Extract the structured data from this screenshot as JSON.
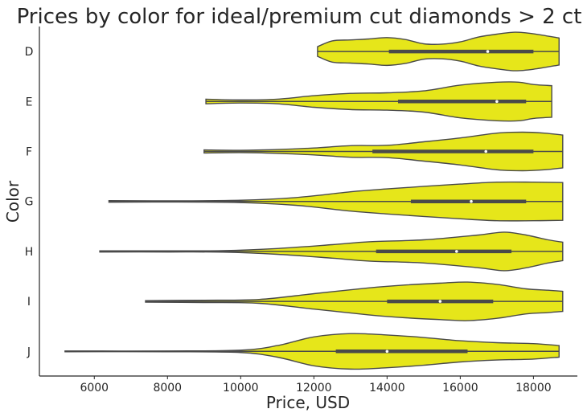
{
  "chart_data": {
    "type": "violin",
    "title": "Prices by color for ideal/premium cut diamonds > 2 ct",
    "xlabel": "Price, USD",
    "ylabel": "Color",
    "xlim": [
      4500,
      19200
    ],
    "xticks": [
      6000,
      8000,
      10000,
      12000,
      14000,
      16000,
      18000
    ],
    "categories": [
      "D",
      "E",
      "F",
      "G",
      "H",
      "I",
      "J"
    ],
    "fill_color": "#e6e61a",
    "grid": false,
    "series": [
      {
        "category": "D",
        "min": 12100,
        "q1": 14050,
        "median": 16750,
        "q3": 18000,
        "max": 18700,
        "density": [
          [
            12100,
            0.25
          ],
          [
            12500,
            0.55
          ],
          [
            13000,
            0.6
          ],
          [
            13500,
            0.65
          ],
          [
            14000,
            0.72
          ],
          [
            14500,
            0.62
          ],
          [
            15000,
            0.4
          ],
          [
            15500,
            0.38
          ],
          [
            16000,
            0.5
          ],
          [
            16500,
            0.75
          ],
          [
            17000,
            0.9
          ],
          [
            17500,
            1.0
          ],
          [
            18000,
            0.92
          ],
          [
            18700,
            0.7
          ]
        ]
      },
      {
        "category": "E",
        "min": 9050,
        "q1": 14300,
        "median": 17000,
        "q3": 17800,
        "max": 18500,
        "density": [
          [
            9050,
            0.12
          ],
          [
            10000,
            0.08
          ],
          [
            11000,
            0.12
          ],
          [
            12000,
            0.3
          ],
          [
            13000,
            0.42
          ],
          [
            14000,
            0.45
          ],
          [
            15000,
            0.55
          ],
          [
            16000,
            0.85
          ],
          [
            17000,
            1.0
          ],
          [
            17600,
            1.0
          ],
          [
            18000,
            0.88
          ],
          [
            18500,
            0.82
          ]
        ]
      },
      {
        "category": "F",
        "min": 9000,
        "q1": 13600,
        "median": 16700,
        "q3": 18000,
        "max": 18800,
        "density": [
          [
            9000,
            0.08
          ],
          [
            10000,
            0.06
          ],
          [
            11000,
            0.1
          ],
          [
            12000,
            0.18
          ],
          [
            13000,
            0.3
          ],
          [
            14000,
            0.32
          ],
          [
            15000,
            0.5
          ],
          [
            16000,
            0.7
          ],
          [
            17000,
            0.95
          ],
          [
            17700,
            1.0
          ],
          [
            18300,
            0.95
          ],
          [
            18800,
            0.85
          ]
        ]
      },
      {
        "category": "G",
        "min": 6400,
        "q1": 14650,
        "median": 16300,
        "q3": 17800,
        "max": 18800,
        "density": [
          [
            6400,
            0.04
          ],
          [
            8000,
            0.03
          ],
          [
            10000,
            0.06
          ],
          [
            11500,
            0.2
          ],
          [
            13000,
            0.5
          ],
          [
            14000,
            0.65
          ],
          [
            15000,
            0.78
          ],
          [
            16000,
            0.9
          ],
          [
            17000,
            1.0
          ],
          [
            18000,
            1.0
          ],
          [
            18800,
            0.98
          ]
        ]
      },
      {
        "category": "H",
        "min": 6150,
        "q1": 13700,
        "median": 15900,
        "q3": 17400,
        "max": 18800,
        "density": [
          [
            6150,
            0.03
          ],
          [
            8000,
            0.03
          ],
          [
            9500,
            0.04
          ],
          [
            11000,
            0.15
          ],
          [
            12500,
            0.35
          ],
          [
            13500,
            0.5
          ],
          [
            15000,
            0.6
          ],
          [
            16500,
            0.85
          ],
          [
            17200,
            1.0
          ],
          [
            17800,
            0.85
          ],
          [
            18400,
            0.6
          ],
          [
            18800,
            0.48
          ]
        ]
      },
      {
        "category": "I",
        "min": 7400,
        "q1": 14000,
        "median": 15450,
        "q3": 16900,
        "max": 18800,
        "density": [
          [
            7400,
            0.04
          ],
          [
            9000,
            0.06
          ],
          [
            10500,
            0.1
          ],
          [
            12000,
            0.4
          ],
          [
            13500,
            0.7
          ],
          [
            14500,
            0.85
          ],
          [
            15500,
            0.95
          ],
          [
            16200,
            1.0
          ],
          [
            17000,
            0.88
          ],
          [
            17800,
            0.65
          ],
          [
            18400,
            0.58
          ],
          [
            18800,
            0.52
          ]
        ]
      },
      {
        "category": "J",
        "min": 5200,
        "q1": 12600,
        "median": 14000,
        "q3": 16200,
        "max": 18700,
        "density": [
          [
            5200,
            0.02
          ],
          [
            8000,
            0.02
          ],
          [
            10000,
            0.06
          ],
          [
            11000,
            0.3
          ],
          [
            12000,
            0.75
          ],
          [
            13000,
            0.92
          ],
          [
            14000,
            0.85
          ],
          [
            15000,
            0.72
          ],
          [
            16000,
            0.55
          ],
          [
            17000,
            0.45
          ],
          [
            18000,
            0.4
          ],
          [
            18700,
            0.3
          ]
        ]
      }
    ]
  }
}
